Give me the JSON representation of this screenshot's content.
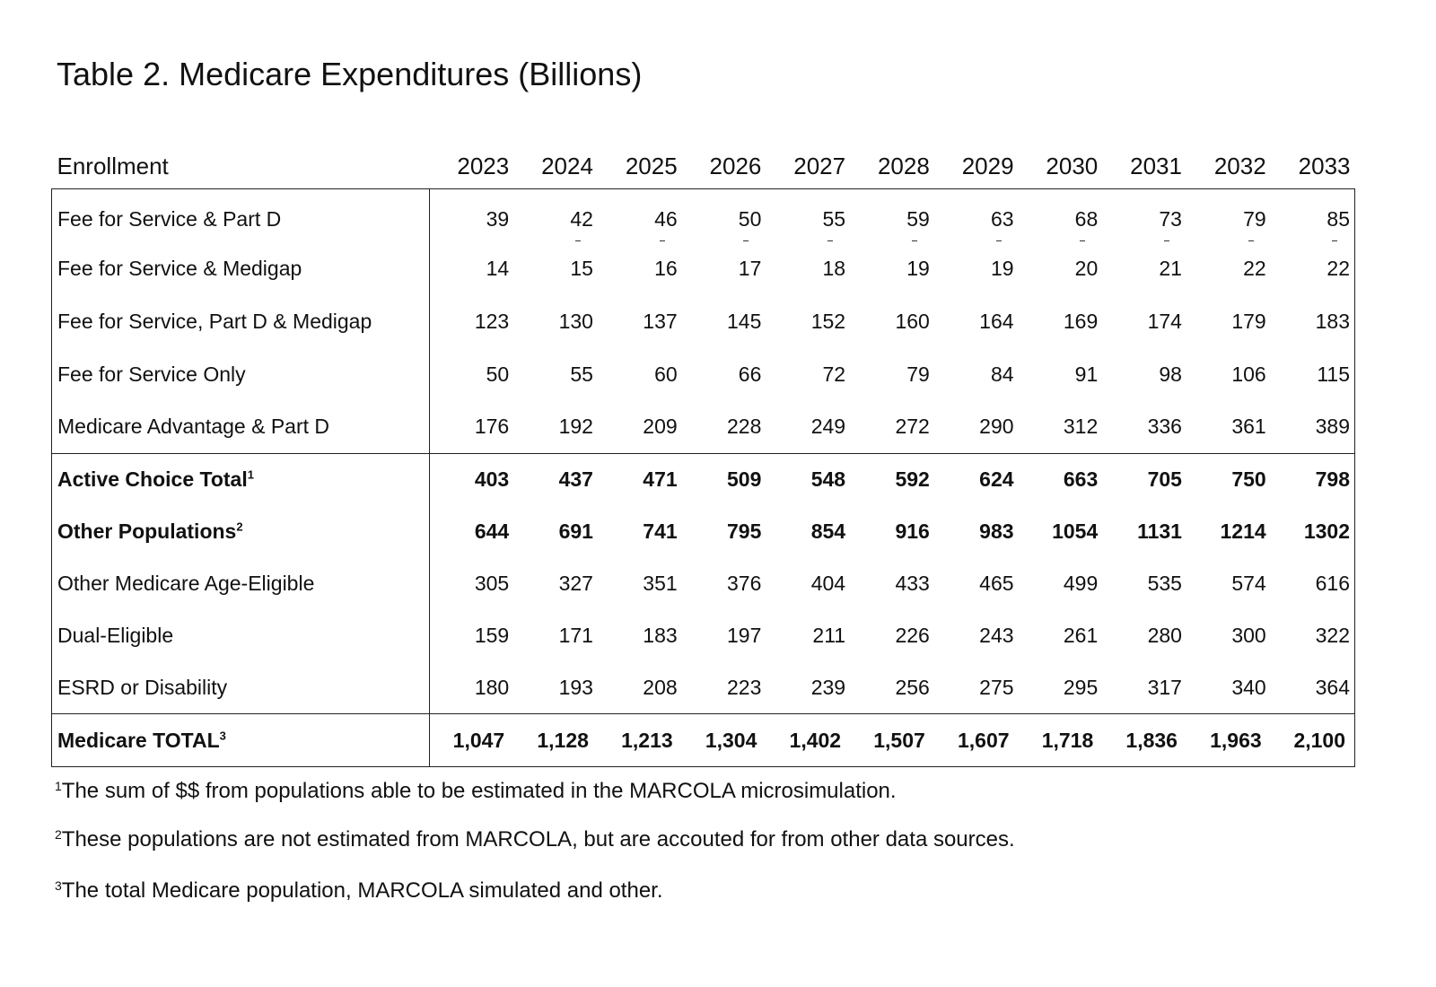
{
  "title": "Table 2. Medicare Expenditures (Billions)",
  "header": {
    "label": "Enrollment",
    "years": [
      "2023",
      "2024",
      "2025",
      "2026",
      "2027",
      "2028",
      "2029",
      "2030",
      "2031",
      "2032",
      "2033"
    ]
  },
  "groups": [
    {
      "rows": [
        {
          "label": "Fee for Service & Part D",
          "values": [
            "39",
            "42",
            "46",
            "50",
            "55",
            "59",
            "63",
            "68",
            "73",
            "79",
            "85"
          ]
        },
        {
          "label": "Fee for Service & Medigap",
          "values": [
            "14",
            "15",
            "16",
            "17",
            "18",
            "19",
            "19",
            "20",
            "21",
            "22",
            "22"
          ]
        },
        {
          "label": "Fee for Service, Part D & Medigap",
          "values": [
            "123",
            "130",
            "137",
            "145",
            "152",
            "160",
            "164",
            "169",
            "174",
            "179",
            "183"
          ]
        },
        {
          "label": "Fee for Service Only",
          "values": [
            "50",
            "55",
            "60",
            "66",
            "72",
            "79",
            "84",
            "91",
            "98",
            "106",
            "115"
          ]
        },
        {
          "label": "Medicare Advantage & Part D",
          "values": [
            "176",
            "192",
            "209",
            "228",
            "249",
            "272",
            "290",
            "312",
            "336",
            "361",
            "389"
          ]
        }
      ]
    },
    {
      "rows": [
        {
          "label": "Active Choice Total",
          "sup": "1",
          "bold": true,
          "values": [
            "403",
            "437",
            "471",
            "509",
            "548",
            "592",
            "624",
            "663",
            "705",
            "750",
            "798"
          ]
        },
        {
          "label": "Other Populations",
          "sup": "2",
          "bold": true,
          "values": [
            "644",
            "691",
            "741",
            "795",
            "854",
            "916",
            "983",
            "1054",
            "1131",
            "1214",
            "1302"
          ]
        },
        {
          "label": "Other Medicare Age-Eligible",
          "values": [
            "305",
            "327",
            "351",
            "376",
            "404",
            "433",
            "465",
            "499",
            "535",
            "574",
            "616"
          ]
        },
        {
          "label": "Dual-Eligible",
          "values": [
            "159",
            "171",
            "183",
            "197",
            "211",
            "226",
            "243",
            "261",
            "280",
            "300",
            "322"
          ]
        },
        {
          "label": "ESRD or Disability",
          "values": [
            "180",
            "193",
            "208",
            "223",
            "239",
            "256",
            "275",
            "295",
            "317",
            "340",
            "364"
          ]
        }
      ]
    },
    {
      "rows": [
        {
          "label": "Medicare TOTAL",
          "sup": "3",
          "bold": true,
          "values": [
            "1,047",
            "1,128",
            "1,213",
            "1,304",
            "1,402",
            "1,507",
            "1,607",
            "1,718",
            "1,836",
            "1,963",
            "2,100"
          ]
        }
      ]
    }
  ],
  "footnotes": [
    {
      "num": "1",
      "text": "The sum of $$ from populations able to be estimated in the MARCOLA microsimulation."
    },
    {
      "num": "2",
      "text": "These populations are not estimated from MARCOLA, but are accouted for from other data sources."
    },
    {
      "num": "3",
      "text": "The total Medicare population, MARCOLA simulated and other."
    }
  ]
}
